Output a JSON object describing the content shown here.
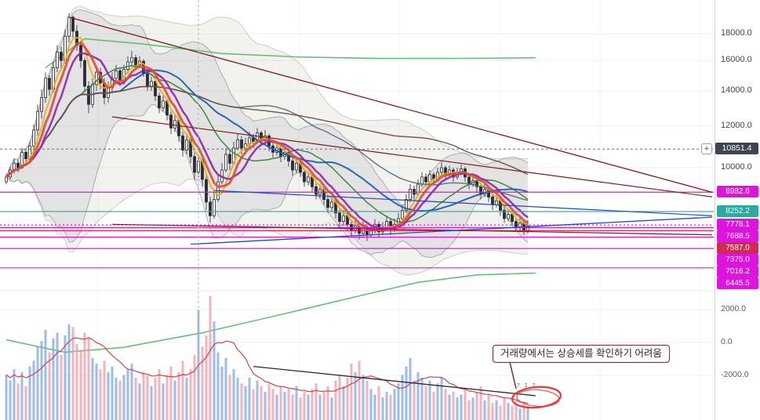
{
  "chart_data": {
    "type": "candlestick",
    "price_axis": {
      "plus_label": "+",
      "ticks": [
        {
          "value": 18000,
          "label": "18000.0"
        },
        {
          "value": 16000,
          "label": "16000.0"
        },
        {
          "value": 14000,
          "label": "14000.0"
        },
        {
          "value": 12000,
          "label": "12000.0"
        },
        {
          "value": 10000,
          "label": "10000.0"
        }
      ],
      "current": {
        "value": 10851.4,
        "label": "10851.4",
        "bg": "#40444e"
      },
      "levels": [
        {
          "value": 8982.6,
          "label": "8982.6",
          "color": "#dd14dd",
          "dotted": false
        },
        {
          "value": 8252.2,
          "label": "8252.2",
          "color": "#2fa9a0",
          "dotted": false
        },
        {
          "value": 7778.1,
          "label": "7778.1",
          "color": "#dd14dd",
          "dotted": true
        },
        {
          "value": 7688.5,
          "label": "7688.5",
          "color": "#dd14dd",
          "dotted": false
        },
        {
          "value": 7587.0,
          "label": "7587.0",
          "color": "#d12950",
          "dotted": false
        },
        {
          "value": 7375.0,
          "label": "7375.0",
          "color": "#dd14dd",
          "dotted": false
        },
        {
          "value": 7016.2,
          "label": "7016.2",
          "color": "#dd14dd",
          "dotted": false
        },
        {
          "value": 6445.5,
          "label": "6445.5",
          "color": "#dd14dd",
          "dotted": false
        }
      ]
    },
    "volume_axis": {
      "ticks": [
        {
          "value": 2000,
          "label": "2000.0"
        },
        {
          "value": 0,
          "label": "0.0"
        },
        {
          "value": -2000,
          "label": "-2000.0"
        }
      ]
    },
    "candles": [
      [
        9400,
        9750,
        9300,
        9600
      ],
      [
        9600,
        10050,
        9500,
        9900
      ],
      [
        9900,
        10400,
        9750,
        10200
      ],
      [
        10200,
        10350,
        9800,
        10000
      ],
      [
        10000,
        10900,
        9950,
        10700
      ],
      [
        10700,
        10850,
        10200,
        10400
      ],
      [
        10400,
        11250,
        10300,
        11000
      ],
      [
        11000,
        12100,
        10800,
        11800
      ],
      [
        11800,
        13200,
        11500,
        12800
      ],
      [
        12800,
        14100,
        12400,
        13600
      ],
      [
        13600,
        15200,
        13300,
        14800
      ],
      [
        14800,
        15000,
        13700,
        14100
      ],
      [
        14100,
        15900,
        13900,
        15500
      ],
      [
        15500,
        17100,
        15200,
        16600
      ],
      [
        16600,
        17000,
        15400,
        16000
      ],
      [
        16000,
        18300,
        15800,
        17800
      ],
      [
        17800,
        19700,
        17300,
        19350
      ],
      [
        19350,
        19500,
        17700,
        18200
      ],
      [
        18200,
        18700,
        16700,
        17100
      ],
      [
        17100,
        17400,
        15500,
        16000
      ],
      [
        16000,
        16200,
        13900,
        14300
      ],
      [
        14300,
        14600,
        12700,
        13200
      ],
      [
        13200,
        14800,
        13000,
        14400
      ],
      [
        14400,
        15600,
        14000,
        15200
      ],
      [
        15200,
        15500,
        14100,
        14500
      ],
      [
        14500,
        14800,
        13200,
        13600
      ],
      [
        13600,
        14600,
        13300,
        14200
      ],
      [
        14200,
        15200,
        13900,
        14800
      ],
      [
        14800,
        15700,
        14500,
        15300
      ],
      [
        15300,
        15500,
        14300,
        14700
      ],
      [
        14700,
        15700,
        14400,
        15400
      ],
      [
        15400,
        16300,
        15100,
        15900
      ],
      [
        15900,
        16700,
        15600,
        16200
      ],
      [
        16200,
        16400,
        15400,
        15700
      ],
      [
        15700,
        16300,
        15500,
        15950
      ],
      [
        15950,
        16100,
        14900,
        15100
      ],
      [
        15100,
        15300,
        14000,
        14300
      ],
      [
        14300,
        14900,
        14000,
        14600
      ],
      [
        14600,
        14700,
        13400,
        13700
      ],
      [
        13700,
        13900,
        12700,
        13000
      ],
      [
        13000,
        13700,
        12800,
        13400
      ],
      [
        13400,
        13500,
        12300,
        12600
      ],
      [
        12600,
        12800,
        11600,
        11900
      ],
      [
        11900,
        12600,
        11700,
        12300
      ],
      [
        12300,
        12400,
        11200,
        11500
      ],
      [
        11500,
        11700,
        10500,
        10800
      ],
      [
        10800,
        11600,
        10600,
        11300
      ],
      [
        11300,
        11400,
        10200,
        10500
      ],
      [
        10500,
        10700,
        9500,
        9800
      ],
      [
        9800,
        10600,
        9600,
        10300
      ],
      [
        10300,
        10400,
        9200,
        9500
      ],
      [
        9500,
        9700,
        8300,
        8600
      ],
      [
        8600,
        8800,
        7850,
        8100
      ],
      [
        8100,
        9000,
        8000,
        8700
      ],
      [
        8700,
        9700,
        8600,
        9400
      ],
      [
        9400,
        10200,
        9300,
        9900
      ],
      [
        9900,
        10900,
        9800,
        10600
      ],
      [
        10600,
        10800,
        9900,
        10200
      ],
      [
        10200,
        11200,
        10100,
        10900
      ],
      [
        10900,
        11600,
        10800,
        11300
      ],
      [
        11300,
        11500,
        10600,
        10900
      ],
      [
        10900,
        11400,
        10700,
        11100
      ],
      [
        11100,
        11700,
        10900,
        11400
      ],
      [
        11400,
        11600,
        10900,
        11200
      ],
      [
        11200,
        11900,
        11100,
        11650
      ],
      [
        11650,
        11750,
        11050,
        11300
      ],
      [
        11300,
        11800,
        11150,
        11500
      ],
      [
        11500,
        11600,
        10750,
        11000
      ],
      [
        11000,
        11150,
        10450,
        10700
      ],
      [
        10700,
        11150,
        10550,
        10900
      ],
      [
        10900,
        11000,
        10250,
        10500
      ],
      [
        10500,
        10950,
        10350,
        10700
      ],
      [
        10700,
        10800,
        10050,
        10300
      ],
      [
        10300,
        10450,
        9650,
        9900
      ],
      [
        9900,
        10400,
        9750,
        10200
      ],
      [
        10200,
        10300,
        9600,
        9800
      ],
      [
        9800,
        9950,
        9200,
        9400
      ],
      [
        9400,
        9800,
        9250,
        9600
      ],
      [
        9600,
        9700,
        9000,
        9200
      ],
      [
        9200,
        9350,
        8700,
        8900
      ],
      [
        8900,
        9300,
        8750,
        9100
      ],
      [
        9100,
        9200,
        8500,
        8700
      ],
      [
        8700,
        8850,
        8200,
        8400
      ],
      [
        8400,
        8800,
        8250,
        8600
      ],
      [
        8600,
        8700,
        8000,
        8200
      ],
      [
        8200,
        8350,
        7700,
        7900
      ],
      [
        7900,
        8300,
        7750,
        8100
      ],
      [
        8100,
        8200,
        7600,
        7800
      ],
      [
        7800,
        7950,
        7400,
        7600
      ],
      [
        7600,
        7950,
        7500,
        7750
      ],
      [
        7750,
        7850,
        7300,
        7500
      ],
      [
        7500,
        7900,
        7400,
        7700
      ],
      [
        7700,
        7800,
        7250,
        7450
      ],
      [
        7450,
        7800,
        7350,
        7600
      ],
      [
        7600,
        7980,
        7500,
        7800
      ],
      [
        7800,
        7900,
        7350,
        7550
      ],
      [
        7550,
        7880,
        7450,
        7700
      ],
      [
        7700,
        8100,
        7600,
        7900
      ],
      [
        7900,
        8000,
        7450,
        7650
      ],
      [
        7650,
        8000,
        7550,
        7800
      ],
      [
        7800,
        8200,
        7700,
        8000
      ],
      [
        8000,
        8500,
        7900,
        8300
      ],
      [
        8300,
        8900,
        8200,
        8700
      ],
      [
        8700,
        9300,
        8600,
        9100
      ],
      [
        9100,
        9250,
        8700,
        8900
      ],
      [
        8900,
        9500,
        8800,
        9300
      ],
      [
        9300,
        9800,
        9200,
        9600
      ],
      [
        9600,
        9750,
        9200,
        9400
      ],
      [
        9400,
        9900,
        9300,
        9700
      ],
      [
        9700,
        9800,
        9300,
        9500
      ],
      [
        9500,
        10000,
        9400,
        9800
      ],
      [
        9800,
        10250,
        9700,
        10000
      ],
      [
        10000,
        10100,
        9500,
        9700
      ],
      [
        9700,
        10100,
        9600,
        9900
      ],
      [
        9900,
        10000,
        9400,
        9600
      ],
      [
        9600,
        10000,
        9500,
        9800
      ],
      [
        9800,
        10150,
        9700,
        9950
      ],
      [
        9950,
        10050,
        9400,
        9600
      ],
      [
        9600,
        9750,
        9100,
        9300
      ],
      [
        9300,
        9650,
        9200,
        9450
      ],
      [
        9450,
        9550,
        9000,
        9200
      ],
      [
        9200,
        9350,
        8700,
        8900
      ],
      [
        8900,
        9300,
        8800,
        9100
      ],
      [
        9100,
        9200,
        8600,
        8800
      ],
      [
        8800,
        8950,
        8300,
        8500
      ],
      [
        8500,
        8850,
        8400,
        8650
      ],
      [
        8650,
        8750,
        8100,
        8300
      ],
      [
        8300,
        8450,
        7850,
        8000
      ],
      [
        8000,
        8350,
        7900,
        8150
      ],
      [
        8150,
        8250,
        7750,
        7900
      ],
      [
        7900,
        8000,
        7550,
        7700
      ],
      [
        7700,
        8050,
        7600,
        7850
      ],
      [
        7850,
        7950,
        7450,
        7600
      ],
      [
        7600,
        7950,
        7500,
        7750
      ]
    ],
    "volume": [
      1600,
      1400,
      1800,
      1300,
      1700,
      1200,
      1900,
      2100,
      2600,
      2800,
      3200,
      2400,
      2900,
      3100,
      2300,
      3000,
      3400,
      3300,
      2700,
      2500,
      3100,
      2900,
      2200,
      2000,
      1800,
      2100,
      1700,
      1900,
      1500,
      1400,
      1600,
      1800,
      2000,
      1500,
      1300,
      1700,
      1600,
      1200,
      1500,
      1800,
      1300,
      1600,
      1900,
      1400,
      1700,
      2100,
      1500,
      1800,
      2300,
      3900,
      2600,
      3000,
      4400,
      3500,
      2400,
      1900,
      2200,
      1600,
      1800,
      1500,
      1300,
      1200,
      1500,
      1100,
      1400,
      1200,
      1000,
      1300,
      1100,
      900,
      1200,
      1000,
      1100,
      900,
      1200,
      800,
      1000,
      900,
      1100,
      1300,
      900,
      1000,
      1200,
      800,
      1400,
      1600,
      1200,
      1500,
      2000,
      1700,
      2100,
      1600,
      1400,
      1100,
      900,
      1200,
      800,
      1000,
      900,
      1100,
      1300,
      1600,
      1900,
      2200,
      1400,
      1700,
      1500,
      1200,
      1400,
      1000,
      1300,
      1500,
      1100,
      900,
      1000,
      800,
      900,
      1100,
      700,
      800,
      1000,
      1200,
      700,
      900,
      600,
      700,
      500,
      800,
      600,
      500,
      700,
      400,
      600,
      500
    ],
    "overlays": {
      "moving_averages": [
        {
          "name": "ma-5",
          "period": 5,
          "color": "#e3b316",
          "width": 2
        },
        {
          "name": "ma-20",
          "period": 20,
          "color": "#2e7d32",
          "width": 1.5
        },
        {
          "name": "ma-30",
          "period": 30,
          "color": "#1a56b0",
          "width": 2
        },
        {
          "name": "ma-60",
          "period": 60,
          "color": "#546e7a",
          "width": 1.5
        },
        {
          "name": "ma-100",
          "period": 100,
          "color": "#6d4c41",
          "width": 1.5
        },
        {
          "name": "ma-10",
          "period": 10,
          "color": "#8e24aa",
          "width": 2.5
        },
        {
          "name": "ma-7",
          "period": 7,
          "color": "#e04b3c",
          "width": 3
        }
      ],
      "bands": [
        {
          "name": "bollinger-20",
          "period": 20,
          "mult": 2,
          "fill": "rgba(90,98,120,0.10)",
          "stroke": "rgba(90,98,120,0.45)"
        },
        {
          "name": "bollinger-45",
          "period": 45,
          "mult": 2.1,
          "fill": "rgba(128,128,96,0.10)",
          "stroke": "rgba(128,128,96,0.35)"
        }
      ],
      "curves": [
        {
          "name": "envelope-upper",
          "color": "#58b868",
          "width": 1.6,
          "points": [
            [
              10,
              15500
            ],
            [
              20,
              17600
            ],
            [
              35,
              17200
            ],
            [
              55,
              16500
            ],
            [
              75,
              16250
            ],
            [
              95,
              16150
            ],
            [
              115,
              16150
            ],
            [
              135,
              16200
            ]
          ]
        },
        {
          "name": "envelope-lower",
          "color": "#58b868",
          "width": 1.6,
          "points": [
            [
              0,
              4700
            ],
            [
              15,
              4450
            ],
            [
              30,
              4550
            ],
            [
              50,
              4850
            ],
            [
              70,
              5250
            ],
            [
              90,
              5700
            ],
            [
              105,
              6050
            ],
            [
              120,
              6250
            ],
            [
              135,
              6300
            ]
          ]
        }
      ],
      "trendlines": [
        {
          "name": "descending-resistance-1",
          "color": "#7f1d1d",
          "width": 1.3,
          "from": [
            16,
            19350
          ],
          "to": [
            180,
            8980
          ]
        },
        {
          "name": "descending-resistance-2",
          "color": "#7f1d1d",
          "width": 1.2,
          "from": [
            27,
            12500
          ],
          "to": [
            180,
            8800
          ]
        },
        {
          "name": "channel-bottom",
          "color": "#7f1d1d",
          "width": 1.2,
          "from": [
            27,
            7800
          ],
          "to": [
            180,
            7450
          ]
        },
        {
          "name": "ascending-support",
          "color": "#2246c9",
          "width": 1.3,
          "from": [
            47,
            7150
          ],
          "to": [
            180,
            8050
          ]
        },
        {
          "name": "descending-pennant",
          "color": "#2246c9",
          "width": 1.2,
          "from": [
            53,
            9050
          ],
          "to": [
            180,
            8100
          ]
        }
      ],
      "volume_ma": {
        "period": 10,
        "color": "#d04545",
        "width": 1.2
      },
      "volume_trendline": {
        "color": "#26262b",
        "width": 1.3,
        "from": [
          63,
          1900
        ],
        "to": [
          135,
          860
        ]
      },
      "crosshair_index": 49
    },
    "annotations": {
      "callout": {
        "text": "거래량에서는 상승세를 확인하기 어려움",
        "border": "#7d2a36",
        "bg": "#fffcfc",
        "text_color": "#36262b"
      },
      "ellipse": {
        "color": "#e53935"
      },
      "tiny_text": "7 1 2"
    }
  }
}
